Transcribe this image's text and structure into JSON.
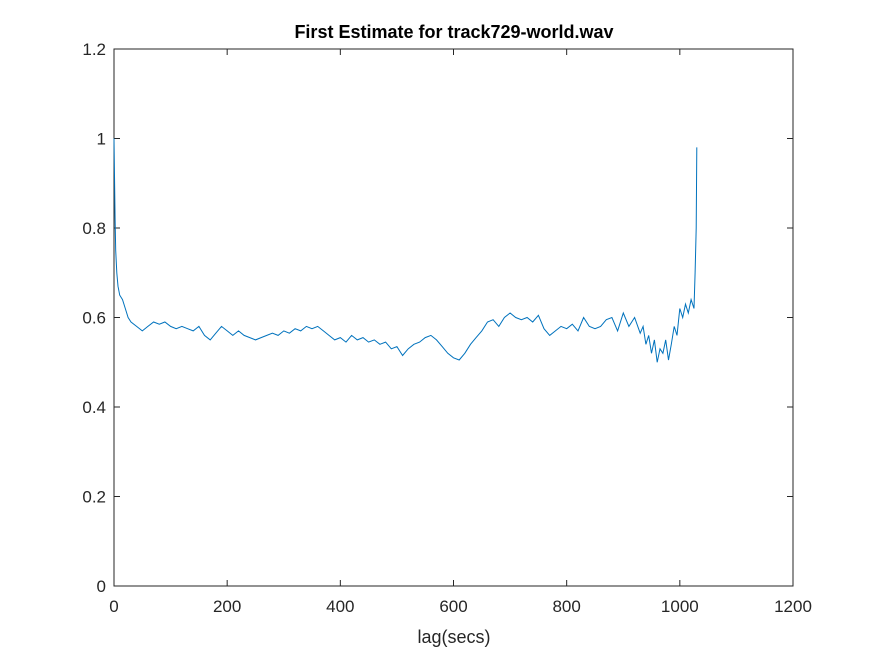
{
  "chart_data": {
    "type": "line",
    "title": "First Estimate for track729-world.wav",
    "xlabel": "lag(secs)",
    "ylabel": "",
    "xlim": [
      0,
      1200
    ],
    "ylim": [
      0,
      1.2
    ],
    "xticks": [
      0,
      200,
      400,
      600,
      800,
      1000,
      1200
    ],
    "yticks": [
      0,
      0.2,
      0.4,
      0.6,
      0.8,
      1,
      1.2
    ],
    "xtick_labels": [
      "0",
      "200",
      "400",
      "600",
      "800",
      "1000",
      "1200"
    ],
    "ytick_labels": [
      "0",
      "0.2",
      "0.4",
      "0.6",
      "0.8",
      "1",
      "1.2"
    ],
    "grid": false,
    "legend": "none",
    "line_color": "#0072BD",
    "series": [
      {
        "x": [
          0,
          1,
          2,
          3,
          5,
          7,
          10,
          15,
          20,
          25,
          30,
          40,
          50,
          60,
          70,
          80,
          90,
          100,
          110,
          120,
          130,
          140,
          150,
          160,
          170,
          180,
          190,
          200,
          210,
          220,
          230,
          240,
          250,
          260,
          270,
          280,
          290,
          300,
          310,
          320,
          330,
          340,
          350,
          360,
          370,
          380,
          390,
          400,
          410,
          420,
          430,
          440,
          450,
          460,
          470,
          480,
          490,
          500,
          510,
          520,
          530,
          540,
          550,
          560,
          570,
          580,
          590,
          600,
          610,
          620,
          630,
          640,
          650,
          660,
          670,
          680,
          690,
          700,
          710,
          720,
          730,
          740,
          750,
          760,
          770,
          780,
          790,
          800,
          810,
          820,
          830,
          840,
          850,
          860,
          870,
          880,
          890,
          900,
          910,
          920,
          930,
          935,
          940,
          945,
          950,
          955,
          960,
          965,
          970,
          975,
          980,
          985,
          990,
          995,
          1000,
          1005,
          1010,
          1015,
          1020,
          1025,
          1027,
          1029,
          1030
        ],
        "y": [
          1.0,
          0.9,
          0.82,
          0.75,
          0.7,
          0.67,
          0.65,
          0.64,
          0.62,
          0.6,
          0.59,
          0.58,
          0.57,
          0.58,
          0.59,
          0.585,
          0.59,
          0.58,
          0.575,
          0.58,
          0.575,
          0.57,
          0.58,
          0.56,
          0.55,
          0.565,
          0.58,
          0.57,
          0.56,
          0.57,
          0.56,
          0.555,
          0.55,
          0.555,
          0.56,
          0.565,
          0.56,
          0.57,
          0.565,
          0.575,
          0.57,
          0.58,
          0.575,
          0.58,
          0.57,
          0.56,
          0.55,
          0.555,
          0.545,
          0.56,
          0.55,
          0.555,
          0.545,
          0.55,
          0.54,
          0.545,
          0.53,
          0.535,
          0.515,
          0.53,
          0.54,
          0.545,
          0.555,
          0.56,
          0.55,
          0.535,
          0.52,
          0.51,
          0.505,
          0.52,
          0.54,
          0.555,
          0.57,
          0.59,
          0.595,
          0.58,
          0.6,
          0.61,
          0.6,
          0.595,
          0.6,
          0.59,
          0.605,
          0.575,
          0.56,
          0.57,
          0.58,
          0.575,
          0.585,
          0.57,
          0.6,
          0.58,
          0.575,
          0.58,
          0.595,
          0.6,
          0.57,
          0.61,
          0.58,
          0.6,
          0.565,
          0.58,
          0.54,
          0.56,
          0.52,
          0.55,
          0.5,
          0.53,
          0.52,
          0.55,
          0.505,
          0.54,
          0.58,
          0.56,
          0.62,
          0.6,
          0.63,
          0.61,
          0.64,
          0.62,
          0.7,
          0.8,
          0.98
        ]
      }
    ]
  }
}
